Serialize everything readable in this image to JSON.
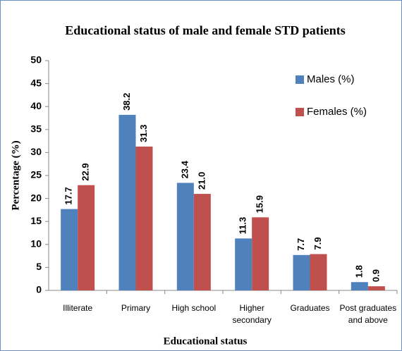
{
  "chart_data": {
    "type": "bar",
    "title": "Educational status of male and female STD patients",
    "x_label": "Educational status",
    "y_label": "Percentage (%)",
    "categories": [
      "Illiterate",
      "Primary",
      "High school",
      "Higher secondary",
      "Graduates",
      "Post graduates and above"
    ],
    "series": [
      {
        "name": "Males (%)",
        "color": "#4f81bd",
        "values": [
          17.7,
          38.2,
          23.4,
          11.3,
          7.7,
          1.8
        ],
        "value_labels": [
          "17.7",
          "38.2",
          "23.4",
          "11.3",
          "7.7",
          "1.8"
        ]
      },
      {
        "name": "Females (%)",
        "color": "#c0504d",
        "values": [
          22.9,
          31.3,
          21,
          15.9,
          7.9,
          0.9
        ],
        "value_labels": [
          "22.9",
          "31.3",
          "21.0",
          "15.9",
          "7.9",
          "0.9"
        ]
      }
    ],
    "ylim": [
      0,
      50
    ],
    "yticks": [
      0,
      5,
      10,
      15,
      20,
      25,
      30,
      35,
      40,
      45,
      50
    ],
    "grid": false,
    "legend": "upper right"
  }
}
